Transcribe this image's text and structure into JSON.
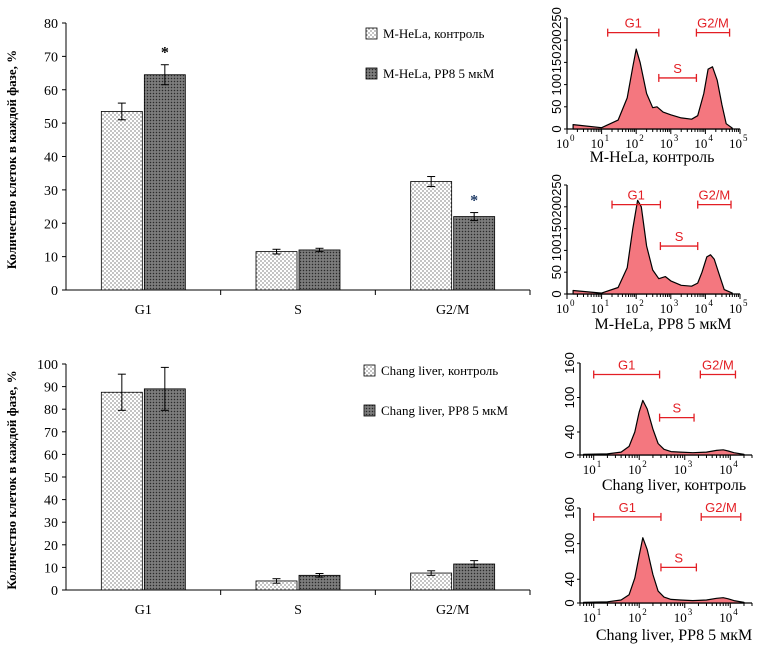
{
  "colors": {
    "hist_fill": "#f4777f",
    "gate": "#e31e24",
    "axis": "#000000",
    "bar_ctrl": "#ffffff",
    "bar_pp8": "#6e6e6e"
  },
  "chart_data": [
    {
      "type": "bar",
      "categories": [
        "G1",
        "S",
        "G2/M"
      ],
      "ylabel": "Количество клеток в каждой фазе, %",
      "ylim": [
        0,
        80
      ],
      "yticks": [
        "0",
        "10",
        "20",
        "30",
        "40",
        "50",
        "60",
        "70",
        "80"
      ],
      "legend_position": "top-right",
      "series": [
        {
          "name": "M-HeLa, контроль",
          "values": [
            53.5,
            11.5,
            32.5
          ],
          "errors": [
            2.5,
            0.7,
            1.5
          ],
          "pattern": "dots"
        },
        {
          "name": "M-HeLa, PP8 5 мкМ",
          "values": [
            64.5,
            12,
            22
          ],
          "errors": [
            3,
            0.5,
            1.2
          ],
          "pattern": "dark"
        }
      ],
      "significance": [
        {
          "series": 1,
          "category": 0,
          "label": "*"
        },
        {
          "series": 1,
          "category": 2,
          "label": "*"
        }
      ]
    },
    {
      "type": "bar",
      "categories": [
        "G1",
        "S",
        "G2/M"
      ],
      "ylabel": "Количество клеток в каждой фазе, %",
      "ylim": [
        0,
        100
      ],
      "yticks": [
        "0",
        "10",
        "20",
        "30",
        "40",
        "50",
        "60",
        "70",
        "80",
        "90",
        "100"
      ],
      "legend_position": "top-right",
      "series": [
        {
          "name": "Chang liver, контроль",
          "values": [
            87.5,
            4,
            7.5
          ],
          "errors": [
            8,
            1,
            1
          ],
          "pattern": "dots"
        },
        {
          "name": "Chang liver, PP8 5 мкМ",
          "values": [
            89,
            6.5,
            11.5
          ],
          "errors": [
            9.5,
            0.8,
            1.5
          ],
          "pattern": "dark"
        }
      ]
    },
    {
      "type": "area",
      "title": "M-HeLa, контроль",
      "xscale": "log",
      "xlim": [
        1,
        100000
      ],
      "ylim": [
        0,
        250
      ],
      "yticks": [
        "0",
        "50",
        "100",
        "150",
        "200",
        "250"
      ],
      "xticks": [
        {
          "base": "10",
          "exp": "0"
        },
        {
          "base": "10",
          "exp": "1"
        },
        {
          "base": "10",
          "exp": "2"
        },
        {
          "base": "10",
          "exp": "3"
        },
        {
          "base": "10",
          "exp": "4"
        },
        {
          "base": "10",
          "exp": "5"
        }
      ],
      "x": [
        1.5,
        10,
        30,
        55,
        80,
        100,
        130,
        200,
        300,
        400,
        600,
        1000,
        2000,
        4000,
        6000,
        9000,
        12000,
        16000,
        22000,
        30000,
        40000,
        60000
      ],
      "y": [
        10,
        3,
        20,
        70,
        140,
        180,
        150,
        80,
        48,
        50,
        38,
        32,
        25,
        22,
        30,
        80,
        135,
        140,
        110,
        55,
        12,
        2
      ],
      "gates": [
        {
          "label": "G1",
          "x1": 15,
          "x2": 450,
          "y": 217
        },
        {
          "label": "S",
          "x1": 450,
          "x2": 5500,
          "y": 115
        },
        {
          "label": "G2/M",
          "x1": 5500,
          "x2": 50000,
          "y": 217
        }
      ]
    },
    {
      "type": "area",
      "title": "M-HeLa, PP8 5  мкМ",
      "xscale": "log",
      "xlim": [
        1,
        100000
      ],
      "ylim": [
        0,
        250
      ],
      "yticks": [
        "0",
        "50",
        "100",
        "150",
        "200",
        "250"
      ],
      "xticks": [
        {
          "base": "10",
          "exp": "0"
        },
        {
          "base": "10",
          "exp": "1"
        },
        {
          "base": "10",
          "exp": "2"
        },
        {
          "base": "10",
          "exp": "3"
        },
        {
          "base": "10",
          "exp": "4"
        },
        {
          "base": "10",
          "exp": "5"
        }
      ],
      "x": [
        1.5,
        10,
        30,
        55,
        80,
        110,
        140,
        200,
        300,
        450,
        700,
        1000,
        2000,
        4000,
        6000,
        8000,
        11000,
        14000,
        18000,
        25000,
        35000,
        60000
      ],
      "y": [
        8,
        2,
        15,
        60,
        150,
        215,
        200,
        110,
        55,
        35,
        40,
        30,
        20,
        18,
        25,
        50,
        85,
        90,
        80,
        45,
        10,
        2
      ],
      "gates": [
        {
          "label": "G1",
          "x1": 20,
          "x2": 500,
          "y": 205
        },
        {
          "label": "S",
          "x1": 500,
          "x2": 6000,
          "y": 110
        },
        {
          "label": "G2/M",
          "x1": 6000,
          "x2": 55000,
          "y": 205
        }
      ]
    },
    {
      "type": "area",
      "title": "Chang liver, контроль",
      "xscale": "log",
      "xlim": [
        5,
        30000
      ],
      "ylim": [
        0,
        160
      ],
      "yticks": [
        "0",
        "40",
        "100",
        "160"
      ],
      "xticks": [
        {
          "base": "10",
          "exp": "1"
        },
        {
          "base": "10",
          "exp": "2"
        },
        {
          "base": "10",
          "exp": "3"
        },
        {
          "base": "10",
          "exp": "4"
        }
      ],
      "x": [
        6,
        20,
        40,
        60,
        80,
        100,
        120,
        150,
        200,
        260,
        350,
        500,
        800,
        1500,
        3000,
        5000,
        7000,
        9000,
        12000,
        20000
      ],
      "y": [
        1,
        2,
        5,
        15,
        40,
        75,
        95,
        80,
        45,
        20,
        10,
        6,
        5,
        4,
        5,
        8,
        9,
        7,
        4,
        1
      ],
      "gates": [
        {
          "label": "G1",
          "x1": 10,
          "x2": 280,
          "y": 140
        },
        {
          "label": "S",
          "x1": 280,
          "x2": 1600,
          "y": 65
        },
        {
          "label": "G2/M",
          "x1": 2200,
          "x2": 13000,
          "y": 140
        }
      ]
    },
    {
      "type": "area",
      "title": "Chang liver, PP8 5 мкМ",
      "xscale": "log",
      "xlim": [
        5,
        30000
      ],
      "ylim": [
        0,
        160
      ],
      "yticks": [
        "0",
        "40",
        "100",
        "160"
      ],
      "xticks": [
        {
          "base": "10",
          "exp": "1"
        },
        {
          "base": "10",
          "exp": "2"
        },
        {
          "base": "10",
          "exp": "3"
        },
        {
          "base": "10",
          "exp": "4"
        }
      ],
      "x": [
        6,
        20,
        40,
        60,
        80,
        100,
        120,
        150,
        200,
        260,
        350,
        500,
        800,
        1500,
        3000,
        5000,
        7000,
        9000,
        12000,
        20000
      ],
      "y": [
        1,
        2,
        5,
        14,
        42,
        80,
        110,
        90,
        48,
        20,
        10,
        6,
        5,
        4,
        5,
        8,
        9,
        7,
        4,
        1
      ],
      "gates": [
        {
          "label": "G1",
          "x1": 10,
          "x2": 300,
          "y": 145
        },
        {
          "label": "S",
          "x1": 300,
          "x2": 1800,
          "y": 60
        },
        {
          "label": "G2/M",
          "x1": 2300,
          "x2": 17000,
          "y": 145
        }
      ]
    }
  ]
}
